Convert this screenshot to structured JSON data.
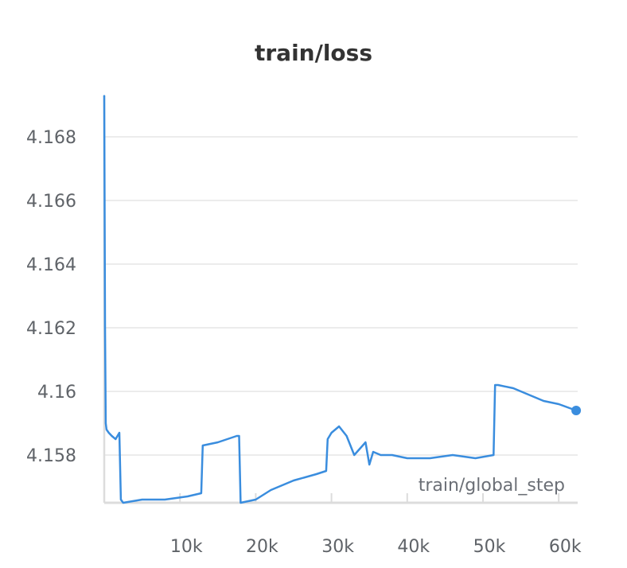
{
  "chart_data": {
    "type": "line",
    "title": "train/loss",
    "xlabel": "train/global_step",
    "ylabel": "",
    "xlim": [
      0,
      62500
    ],
    "ylim": [
      4.1565,
      4.1693
    ],
    "x_ticks": [
      10000,
      20000,
      30000,
      40000,
      50000,
      60000
    ],
    "x_tick_labels": [
      "10k",
      "20k",
      "30k",
      "40k",
      "50k",
      "60k"
    ],
    "y_ticks": [
      4.158,
      4.16,
      4.162,
      4.164,
      4.166,
      4.168
    ],
    "y_tick_labels": [
      "4.158",
      "4.16",
      "4.162",
      "4.164",
      "4.166",
      "4.168"
    ],
    "grid": true,
    "line_color": "#3a8dde",
    "series": [
      {
        "x": [
          0,
          100,
          200,
          300,
          600,
          1000,
          1500,
          2000,
          2200,
          2500,
          5000,
          8000,
          11000,
          12800,
          13000,
          15000,
          17500,
          17800,
          18000,
          20000,
          22000,
          25000,
          28000,
          29300,
          29500,
          30000,
          31000,
          32000,
          33000,
          34500,
          35000,
          35500,
          36500,
          38000,
          40000,
          43000,
          46000,
          49000,
          51400,
          51600,
          52000,
          54000,
          56000,
          58000,
          60000,
          62300
        ],
        "y": [
          4.1693,
          4.162,
          4.159,
          4.1588,
          4.1587,
          4.1586,
          4.1585,
          4.1587,
          4.1566,
          4.1565,
          4.1566,
          4.1566,
          4.1567,
          4.1568,
          4.1583,
          4.1584,
          4.1586,
          4.1586,
          4.1565,
          4.1566,
          4.1569,
          4.1572,
          4.1574,
          4.1575,
          4.1585,
          4.1587,
          4.1589,
          4.1586,
          4.158,
          4.1584,
          4.1577,
          4.1581,
          4.158,
          4.158,
          4.1579,
          4.1579,
          4.158,
          4.1579,
          4.158,
          4.1602,
          4.1602,
          4.1601,
          4.1599,
          4.1597,
          4.1596,
          4.1594
        ]
      }
    ]
  }
}
